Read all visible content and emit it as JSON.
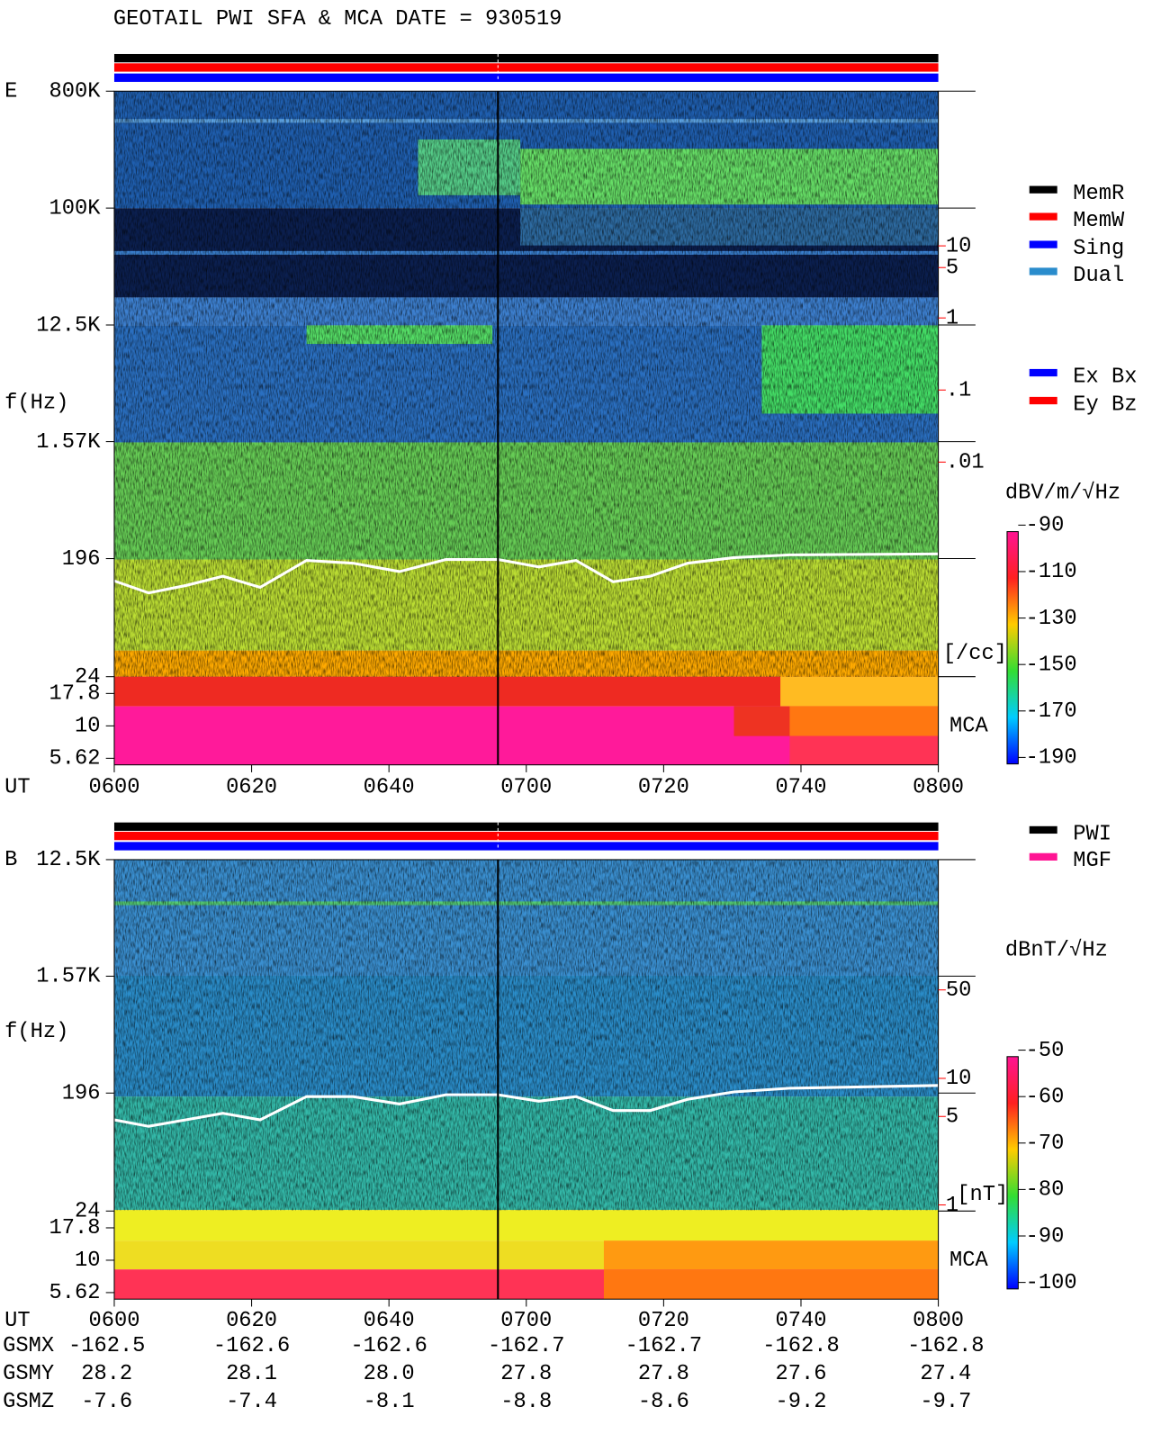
{
  "title": "GEOTAIL  PWI SFA & MCA  DATE = 930519",
  "chart_data": [
    {
      "type": "heatmap",
      "panel_label": "E",
      "ylabel": "f(Hz)",
      "xlabel": "UT",
      "log_y": true,
      "ylim": [
        5,
        800000
      ],
      "yticks": [
        {
          "value": 800000,
          "label": "800K"
        },
        {
          "value": 100000,
          "label": "100K"
        },
        {
          "value": 12500,
          "label": "12.5K"
        },
        {
          "value": 1570,
          "label": "1.57K"
        },
        196,
        24,
        17.8,
        10,
        5.62
      ],
      "xticks": [
        "0600",
        "0620",
        "0640",
        "0700",
        "0720",
        "0740",
        "0800"
      ],
      "y2lim": [
        1400,
        6.3e-07
      ],
      "y2_color": "#ff0000",
      "y2ticks": [
        10,
        5,
        1,
        {
          "value": 0.1,
          "label": ".1"
        },
        {
          "value": 0.01,
          "label": ".01"
        }
      ],
      "y2label": "[/cc]",
      "mca_label": "MCA",
      "legend": [
        {
          "name": "MemR",
          "color": "#000000"
        },
        {
          "name": "MemW",
          "color": "#ff0000"
        },
        {
          "name": "Sing",
          "color": "#0000ff"
        },
        {
          "name": "Dual",
          "color": "#2a8ccc"
        },
        {
          "name": "Ex Bx",
          "color": "#0000ff"
        },
        {
          "name": "Ey Bz",
          "color": "#ff0000"
        }
      ],
      "colorbar": {
        "label": "dBV/m/√Hz",
        "clim": [
          -190,
          -90
        ],
        "ticks": [
          -90,
          -110,
          -130,
          -150,
          -170,
          -190
        ]
      }
    },
    {
      "type": "heatmap",
      "panel_label": "B",
      "ylabel": "f(Hz)",
      "xlabel": "UT",
      "log_y": true,
      "ylim": [
        5,
        12500
      ],
      "yticks": [
        {
          "value": 12500,
          "label": "12.5K"
        },
        {
          "value": 1570,
          "label": "1.57K"
        },
        196,
        24,
        17.8,
        10,
        5.62
      ],
      "xticks": [
        "0600",
        "0620",
        "0640",
        "0700",
        "0720",
        "0740",
        "0800"
      ],
      "y2lim": [
        535,
        0.18
      ],
      "y2_color": "#ff0000",
      "y2ticks": [
        50,
        10,
        5,
        1
      ],
      "y2label": "[nT]",
      "mca_label": "MCA",
      "legend": [
        {
          "name": "PWI",
          "color": "#000000"
        },
        {
          "name": "MGF",
          "color": "#ff1493"
        }
      ],
      "colorbar": {
        "label": "dBnT/√Hz",
        "clim": [
          -100,
          -50
        ],
        "ticks": [
          -50,
          -60,
          -70,
          -80,
          -90,
          -100
        ]
      }
    }
  ],
  "orbit": {
    "rows": [
      {
        "name": "GSMX",
        "values": [
          "-162.5",
          "-162.6",
          "-162.6",
          "-162.7",
          "-162.7",
          "-162.8",
          "-162.8"
        ]
      },
      {
        "name": "GSMY",
        "values": [
          "28.2",
          "28.1",
          "28.0",
          "27.8",
          "27.8",
          "27.6",
          "27.4"
        ]
      },
      {
        "name": "GSMZ",
        "values": [
          "-7.6",
          "-7.4",
          "-8.1",
          "-8.8",
          "-8.6",
          "-9.2",
          "-9.7"
        ]
      }
    ]
  }
}
